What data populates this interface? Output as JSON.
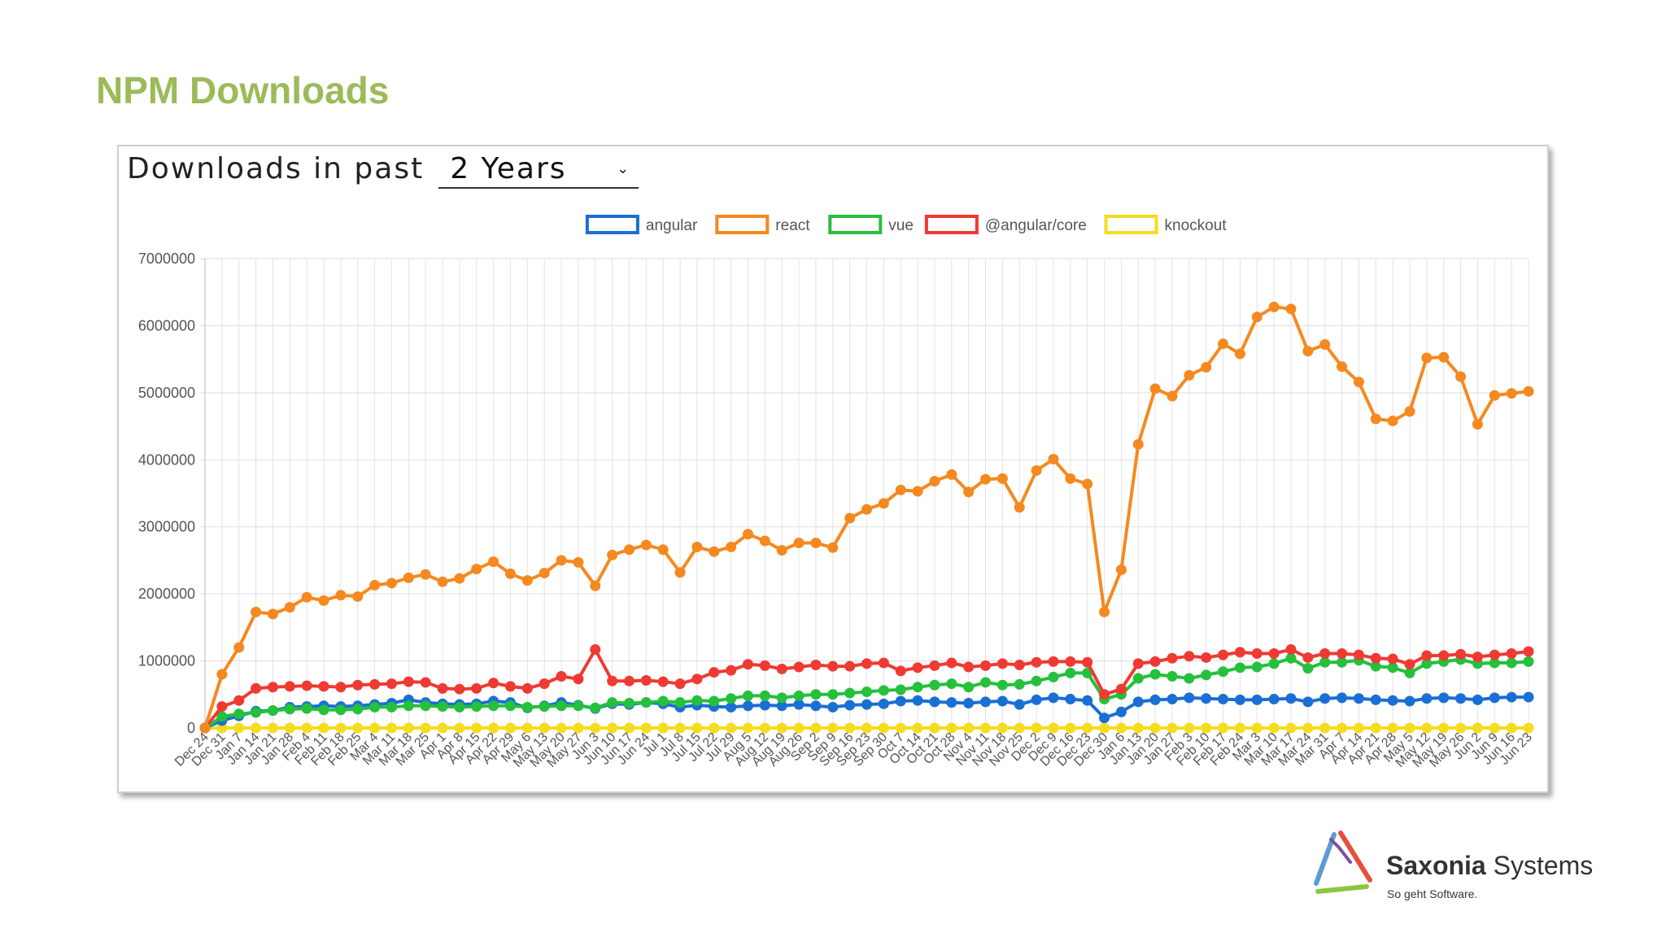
{
  "slide": {
    "title": "NPM Downloads"
  },
  "filter": {
    "label": "Downloads in past",
    "period": "2 Years",
    "icon": "chevron-down-icon"
  },
  "logo": {
    "brand_bold": "Saxonia",
    "brand_rest": " Systems",
    "tagline": "So geht Software.",
    "icon": "triangle-logo-icon"
  },
  "chart_data": {
    "type": "line",
    "title": "",
    "xlabel": "",
    "ylabel": "",
    "ylim": [
      0,
      7000000
    ],
    "yticks": [
      0,
      1000000,
      2000000,
      3000000,
      4000000,
      5000000,
      6000000,
      7000000
    ],
    "grid": true,
    "legend_position": "top-center",
    "x": [
      "Dec 24",
      "Dec 31",
      "Jan 7",
      "Jan 14",
      "Jan 21",
      "Jan 28",
      "Feb 4",
      "Feb 11",
      "Feb 18",
      "Feb 25",
      "Mar 4",
      "Mar 11",
      "Mar 18",
      "Mar 25",
      "Apr 1",
      "Apr 8",
      "Apr 15",
      "Apr 22",
      "Apr 29",
      "May 6",
      "May 13",
      "May 20",
      "May 27",
      "Jun 3",
      "Jun 10",
      "Jun 17",
      "Jun 24",
      "Jul 1",
      "Jul 8",
      "Jul 15",
      "Jul 22",
      "Jul 29",
      "Aug 5",
      "Aug 12",
      "Aug 19",
      "Aug 26",
      "Sep 2",
      "Sep 9",
      "Sep 16",
      "Sep 23",
      "Sep 30",
      "Oct 7",
      "Oct 14",
      "Oct 21",
      "Oct 28",
      "Nov 4",
      "Nov 11",
      "Nov 18",
      "Nov 25",
      "Dec 2",
      "Dec 9",
      "Dec 16",
      "Dec 23",
      "Dec 30",
      "Jan 6",
      "Jan 13",
      "Jan 20",
      "Jan 27",
      "Feb 3",
      "Feb 10",
      "Feb 17",
      "Feb 24",
      "Mar 3",
      "Mar 10",
      "Mar 17",
      "Mar 24",
      "Mar 31",
      "Apr 7",
      "Apr 14",
      "Apr 21",
      "Apr 28",
      "May 5",
      "May 12",
      "May 19",
      "May 26",
      "Jun 2",
      "Jun 9",
      "Jun 16",
      "Jun 23"
    ],
    "series": [
      {
        "name": "angular",
        "color": "#1a6fd4",
        "values": [
          0,
          110000,
          180000,
          250000,
          260000,
          310000,
          320000,
          330000,
          320000,
          330000,
          350000,
          370000,
          420000,
          380000,
          360000,
          350000,
          360000,
          400000,
          380000,
          300000,
          330000,
          380000,
          340000,
          290000,
          360000,
          350000,
          380000,
          360000,
          310000,
          340000,
          320000,
          310000,
          330000,
          340000,
          330000,
          350000,
          330000,
          310000,
          340000,
          350000,
          360000,
          400000,
          410000,
          390000,
          380000,
          370000,
          390000,
          400000,
          350000,
          420000,
          450000,
          430000,
          410000,
          150000,
          240000,
          390000,
          420000,
          430000,
          450000,
          440000,
          430000,
          420000,
          420000,
          430000,
          440000,
          390000,
          440000,
          450000,
          440000,
          420000,
          410000,
          400000,
          440000,
          450000,
          440000,
          420000,
          450000,
          460000,
          460000
        ]
      },
      {
        "name": "react",
        "color": "#f5891f",
        "values": [
          0,
          800000,
          1200000,
          1730000,
          1700000,
          1800000,
          1950000,
          1900000,
          1980000,
          1960000,
          2130000,
          2160000,
          2240000,
          2290000,
          2180000,
          2230000,
          2370000,
          2480000,
          2300000,
          2200000,
          2310000,
          2500000,
          2470000,
          2120000,
          2580000,
          2660000,
          2730000,
          2660000,
          2320000,
          2700000,
          2630000,
          2700000,
          2890000,
          2790000,
          2650000,
          2760000,
          2760000,
          2690000,
          3130000,
          3260000,
          3350000,
          3550000,
          3530000,
          3680000,
          3780000,
          3520000,
          3710000,
          3720000,
          3290000,
          3840000,
          4010000,
          3720000,
          3640000,
          1730000,
          2360000,
          4230000,
          5060000,
          4950000,
          5260000,
          5380000,
          5730000,
          5580000,
          6130000,
          6280000,
          6250000,
          5620000,
          5720000,
          5390000,
          5160000,
          4610000,
          4580000,
          4720000,
          5520000,
          5530000,
          5240000,
          4530000,
          4960000,
          4990000,
          5020000
        ]
      },
      {
        "name": "vue",
        "color": "#25c03c",
        "values": [
          0,
          170000,
          210000,
          230000,
          260000,
          280000,
          290000,
          270000,
          270000,
          280000,
          310000,
          310000,
          330000,
          330000,
          320000,
          310000,
          320000,
          330000,
          330000,
          310000,
          320000,
          330000,
          330000,
          300000,
          380000,
          370000,
          380000,
          400000,
          380000,
          410000,
          400000,
          440000,
          480000,
          480000,
          450000,
          480000,
          500000,
          500000,
          520000,
          540000,
          560000,
          570000,
          610000,
          640000,
          660000,
          610000,
          680000,
          640000,
          650000,
          700000,
          760000,
          820000,
          820000,
          430000,
          500000,
          740000,
          800000,
          770000,
          740000,
          790000,
          840000,
          900000,
          910000,
          960000,
          1040000,
          890000,
          980000,
          980000,
          1010000,
          920000,
          900000,
          820000,
          960000,
          990000,
          1020000,
          960000,
          970000,
          970000,
          990000
        ]
      },
      {
        "name": "@angular/core",
        "color": "#ee3a33",
        "values": [
          0,
          320000,
          410000,
          590000,
          610000,
          620000,
          630000,
          620000,
          610000,
          640000,
          650000,
          660000,
          690000,
          680000,
          590000,
          580000,
          590000,
          670000,
          620000,
          590000,
          660000,
          770000,
          730000,
          1170000,
          700000,
          700000,
          710000,
          690000,
          660000,
          730000,
          830000,
          860000,
          950000,
          930000,
          880000,
          910000,
          940000,
          920000,
          920000,
          960000,
          970000,
          850000,
          900000,
          930000,
          970000,
          910000,
          930000,
          960000,
          940000,
          980000,
          990000,
          990000,
          980000,
          500000,
          580000,
          960000,
          990000,
          1040000,
          1070000,
          1050000,
          1090000,
          1130000,
          1110000,
          1110000,
          1170000,
          1050000,
          1110000,
          1110000,
          1090000,
          1040000,
          1030000,
          950000,
          1080000,
          1080000,
          1100000,
          1060000,
          1090000,
          1110000,
          1140000
        ]
      },
      {
        "name": "knockout",
        "color": "#f5dc1e",
        "values": [
          0,
          0,
          0,
          0,
          0,
          0,
          0,
          0,
          0,
          0,
          0,
          0,
          0,
          0,
          0,
          0,
          0,
          0,
          0,
          0,
          0,
          0,
          0,
          0,
          0,
          0,
          0,
          0,
          0,
          0,
          0,
          0,
          0,
          0,
          0,
          0,
          0,
          0,
          0,
          0,
          0,
          0,
          0,
          0,
          0,
          0,
          0,
          0,
          0,
          0,
          0,
          0,
          0,
          0,
          0,
          0,
          0,
          0,
          0,
          0,
          0,
          0,
          0,
          0,
          0,
          0,
          0,
          0,
          0,
          0,
          0,
          0,
          0,
          0,
          0,
          0,
          0,
          0,
          0
        ]
      }
    ]
  }
}
